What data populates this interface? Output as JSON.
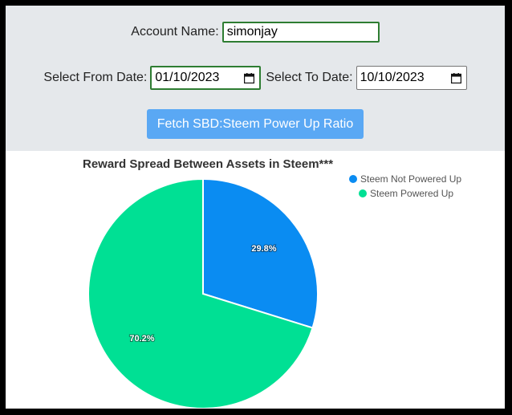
{
  "form": {
    "account_label": "Account Name:",
    "account_value": "simonjay",
    "from_label": "Select From Date:",
    "from_value": "01/10/2023",
    "to_label": "Select To Date:",
    "to_value": "10/10/2023",
    "fetch_button": "Fetch SBD:Steem Power Up Ratio"
  },
  "colors": {
    "not_powered": "#0a8cf2",
    "powered": "#00e094",
    "button": "#5aa8f4",
    "panel": "#e5e8eb"
  },
  "chart_data": {
    "type": "pie",
    "title": "Reward Spread Between Assets in Steem***",
    "categories": [
      "Steem Not Powered Up",
      "Steem Powered Up"
    ],
    "values": [
      29.8,
      70.2
    ],
    "labels": [
      "29.8%",
      "70.2%"
    ],
    "legend": "top-right"
  }
}
